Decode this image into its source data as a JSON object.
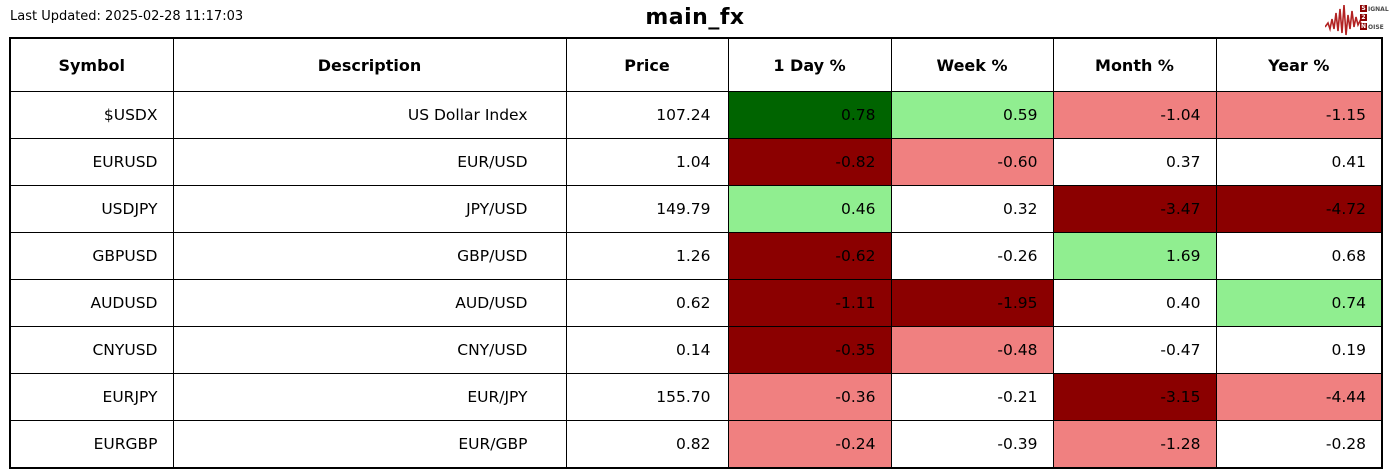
{
  "header": {
    "last_updated": "Last Updated: 2025-02-28 11:17:03",
    "title": "main_fx"
  },
  "logo": {
    "lines": [
      "SIGNAL",
      "2",
      "NOISE"
    ]
  },
  "colors": {
    "dark_green": "#006400",
    "light_green": "#90EE90",
    "light_red": "#F08080",
    "dark_red": "#8B0000",
    "neutral": "#FFFFFF",
    "logo_red": "#B22222"
  },
  "chart_data": {
    "type": "table",
    "title": "main_fx",
    "columns": [
      "Symbol",
      "Description",
      "Price",
      "1 Day %",
      "Week %",
      "Month %",
      "Year %"
    ],
    "rows": [
      {
        "symbol": "$USDX",
        "description": "US Dollar Index",
        "price": "107.24",
        "changes": [
          {
            "value": "0.78",
            "tone": "dark_green"
          },
          {
            "value": "0.59",
            "tone": "light_green"
          },
          {
            "value": "-1.04",
            "tone": "light_red"
          },
          {
            "value": "-1.15",
            "tone": "light_red"
          }
        ]
      },
      {
        "symbol": "EURUSD",
        "description": "EUR/USD",
        "price": "1.04",
        "changes": [
          {
            "value": "-0.82",
            "tone": "dark_red"
          },
          {
            "value": "-0.60",
            "tone": "light_red"
          },
          {
            "value": "0.37",
            "tone": "neutral"
          },
          {
            "value": "0.41",
            "tone": "neutral"
          }
        ]
      },
      {
        "symbol": "USDJPY",
        "description": "JPY/USD",
        "price": "149.79",
        "changes": [
          {
            "value": "0.46",
            "tone": "light_green"
          },
          {
            "value": "0.32",
            "tone": "neutral"
          },
          {
            "value": "-3.47",
            "tone": "dark_red"
          },
          {
            "value": "-4.72",
            "tone": "dark_red"
          }
        ]
      },
      {
        "symbol": "GBPUSD",
        "description": "GBP/USD",
        "price": "1.26",
        "changes": [
          {
            "value": "-0.62",
            "tone": "dark_red"
          },
          {
            "value": "-0.26",
            "tone": "neutral"
          },
          {
            "value": "1.69",
            "tone": "light_green"
          },
          {
            "value": "0.68",
            "tone": "neutral"
          }
        ]
      },
      {
        "symbol": "AUDUSD",
        "description": "AUD/USD",
        "price": "0.62",
        "changes": [
          {
            "value": "-1.11",
            "tone": "dark_red"
          },
          {
            "value": "-1.95",
            "tone": "dark_red"
          },
          {
            "value": "0.40",
            "tone": "neutral"
          },
          {
            "value": "0.74",
            "tone": "light_green"
          }
        ]
      },
      {
        "symbol": "CNYUSD",
        "description": "CNY/USD",
        "price": "0.14",
        "changes": [
          {
            "value": "-0.35",
            "tone": "dark_red"
          },
          {
            "value": "-0.48",
            "tone": "light_red"
          },
          {
            "value": "-0.47",
            "tone": "neutral"
          },
          {
            "value": "0.19",
            "tone": "neutral"
          }
        ]
      },
      {
        "symbol": "EURJPY",
        "description": "EUR/JPY",
        "price": "155.70",
        "changes": [
          {
            "value": "-0.36",
            "tone": "light_red"
          },
          {
            "value": "-0.21",
            "tone": "neutral"
          },
          {
            "value": "-3.15",
            "tone": "dark_red"
          },
          {
            "value": "-4.44",
            "tone": "light_red"
          }
        ]
      },
      {
        "symbol": "EURGBP",
        "description": "EUR/GBP",
        "price": "0.82",
        "changes": [
          {
            "value": "-0.24",
            "tone": "light_red"
          },
          {
            "value": "-0.39",
            "tone": "neutral"
          },
          {
            "value": "-1.28",
            "tone": "light_red"
          },
          {
            "value": "-0.28",
            "tone": "neutral"
          }
        ]
      }
    ]
  }
}
